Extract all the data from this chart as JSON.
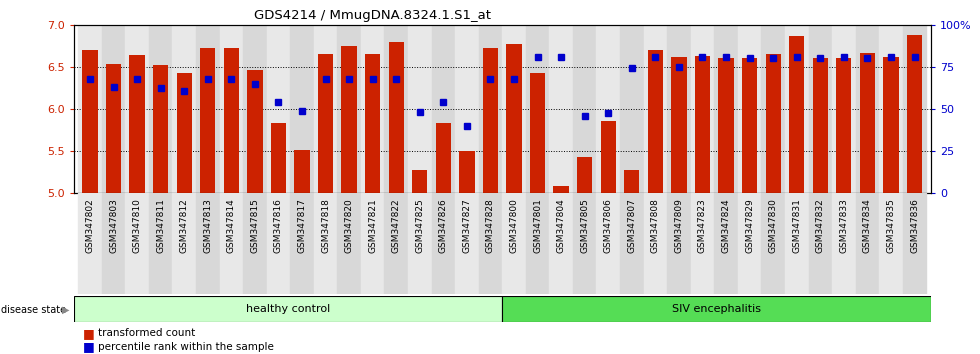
{
  "title": "GDS4214 / MmugDNA.8324.1.S1_at",
  "samples": [
    "GSM347802",
    "GSM347803",
    "GSM347810",
    "GSM347811",
    "GSM347812",
    "GSM347813",
    "GSM347814",
    "GSM347815",
    "GSM347816",
    "GSM347817",
    "GSM347818",
    "GSM347820",
    "GSM347821",
    "GSM347822",
    "GSM347825",
    "GSM347826",
    "GSM347827",
    "GSM347828",
    "GSM347800",
    "GSM347801",
    "GSM347804",
    "GSM347805",
    "GSM347806",
    "GSM347807",
    "GSM347808",
    "GSM347809",
    "GSM347823",
    "GSM347824",
    "GSM347829",
    "GSM347830",
    "GSM347831",
    "GSM347832",
    "GSM347833",
    "GSM347834",
    "GSM347835",
    "GSM347836"
  ],
  "red_values": [
    6.7,
    6.53,
    6.64,
    6.52,
    6.43,
    6.72,
    6.72,
    6.46,
    5.83,
    5.51,
    6.65,
    6.75,
    6.65,
    6.8,
    5.27,
    5.83,
    5.5,
    6.72,
    6.77,
    6.43,
    5.08,
    5.43,
    5.85,
    5.27,
    6.7,
    6.62,
    6.63,
    6.6,
    6.6,
    6.65,
    6.87,
    6.6,
    6.6,
    6.67,
    6.62,
    6.88
  ],
  "blue_values": [
    6.36,
    6.26,
    6.35,
    6.25,
    6.21,
    6.36,
    6.35,
    6.3,
    6.08,
    5.97,
    6.36,
    6.36,
    6.36,
    6.36,
    5.96,
    6.08,
    5.8,
    6.36,
    6.36,
    6.62,
    6.62,
    5.92,
    5.95,
    6.49,
    6.62,
    6.5,
    6.62,
    6.62,
    6.6,
    6.6,
    6.62,
    6.6,
    6.62,
    6.6,
    6.62,
    6.62
  ],
  "group1_label": "healthy control",
  "group1_count": 18,
  "group2_label": "SIV encephalitis",
  "group2_count": 18,
  "group1_color": "#ccffcc",
  "group2_color": "#55dd55",
  "bar_color": "#cc2200",
  "dot_color": "#0000cc",
  "ylim_left": [
    5.0,
    7.0
  ],
  "ylim_right": [
    0,
    100
  ],
  "yticks_left": [
    5.0,
    5.5,
    6.0,
    6.5,
    7.0
  ],
  "yticks_right": [
    0,
    25,
    50,
    75,
    100
  ],
  "ytick_labels_right": [
    "0",
    "25",
    "50",
    "75",
    "100%"
  ],
  "ylabel_left_color": "#cc2200",
  "ylabel_right_color": "#0000cc",
  "bar_width": 0.65,
  "base_value": 5.0
}
